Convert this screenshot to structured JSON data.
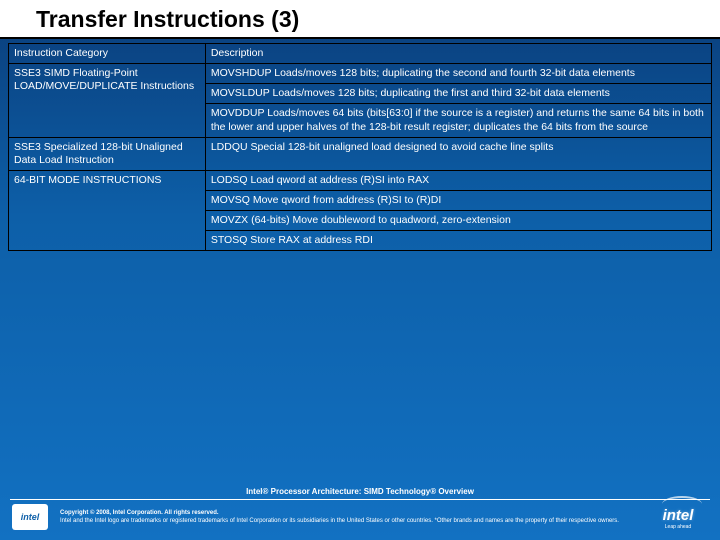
{
  "title": "Transfer Instructions (3)",
  "header": {
    "col1": "Instruction Category",
    "col2": "Description"
  },
  "rows": {
    "r1c1": "SSE3 SIMD Floating-Point LOAD/MOVE/DUPLICATE Instructions",
    "r1c2a": "MOVSHDUP Loads/moves 128 bits; duplicating the second and fourth 32-bit data elements",
    "r1c2b": "MOVSLDUP Loads/moves 128 bits; duplicating the first and third 32-bit data elements",
    "r1c2c": "MOVDDUP Loads/moves 64 bits (bits[63:0] if the source is a register) and returns the same 64 bits in both the lower and upper halves of the 128-bit result register; duplicates the 64 bits from the source",
    "r2c1": "SSE3 Specialized 128-bit Unaligned Data Load Instruction",
    "r2c2": "LDDQU Special 128-bit unaligned load designed to avoid cache line splits",
    "r3c1": "64-BIT MODE INSTRUCTIONS",
    "r3c2a": "LODSQ Load qword at address (R)SI into RAX",
    "r3c2b": "MOVSQ Move qword from address (R)SI to (R)DI",
    "r3c2c": "MOVZX (64-bits) Move doubleword to quadword, zero-extension",
    "r3c2d": "STOSQ Store RAX at address RDI"
  },
  "footer": {
    "mid": "Intel® Processor Architecture: SIMD Technology® Overview",
    "copy1": "Copyright © 2008, Intel Corporation. All rights reserved.",
    "copy2": "Intel and the Intel logo are trademarks or registered trademarks of Intel Corporation or its subsidiaries in the United States or other countries. *Other brands and names are the property of their respective owners.",
    "logoLeft": "intel",
    "logoRight": "intel",
    "swSub": "Leap ahead"
  }
}
